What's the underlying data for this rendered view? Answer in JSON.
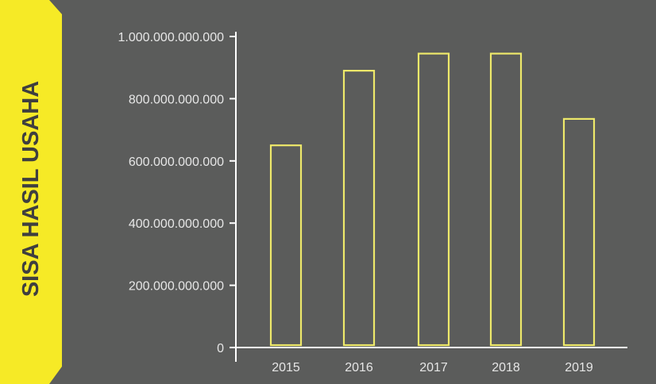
{
  "colors": {
    "background": "#5b5c5b",
    "outer_background": "#f2f2f2",
    "accent_yellow": "#f6ea26",
    "bar_outline": "#eee96a",
    "axis_line": "#ffffff",
    "label_text": "#e6e6e6",
    "title_text": "#3f3f3f"
  },
  "chart_data": {
    "type": "bar",
    "title": "",
    "xlabel": "",
    "ylabel": "SISA HASIL USAHA",
    "categories": [
      "2015",
      "2016",
      "2017",
      "2018",
      "2019"
    ],
    "values": [
      650000000000,
      890000000000,
      945000000000,
      945000000000,
      735000000000
    ],
    "ylim": [
      0,
      1000000000000
    ],
    "y_ticks": [
      {
        "value": 0,
        "label": "0"
      },
      {
        "value": 200000000000,
        "label": "200.000.000.000"
      },
      {
        "value": 400000000000,
        "label": "400.000.000.000"
      },
      {
        "value": 600000000000,
        "label": "600.000.000.000"
      },
      {
        "value": 800000000000,
        "label": "800.000.000.000"
      },
      {
        "value": 1000000000000,
        "label": "1.000.000.000.000"
      }
    ],
    "bar_style": "outline",
    "grid": false,
    "legend": "none"
  }
}
